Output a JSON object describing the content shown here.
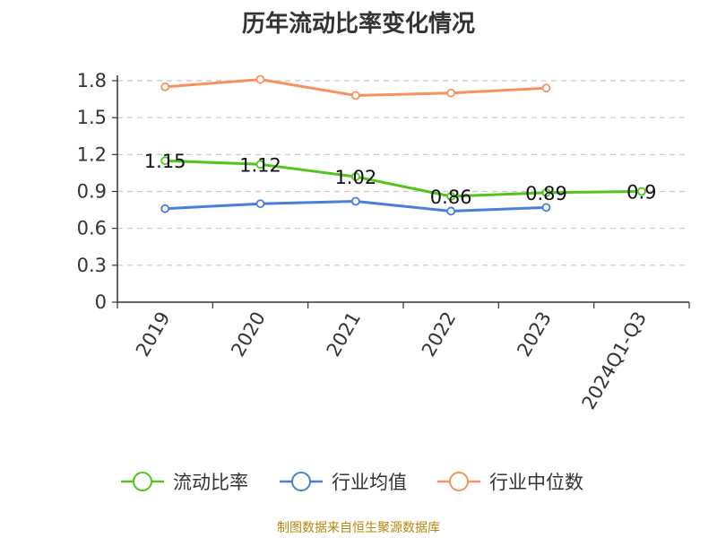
{
  "chart_data": {
    "type": "line",
    "title": "历年流动比率变化情况",
    "categories": [
      "2019",
      "2020",
      "2021",
      "2022",
      "2023",
      "2024Q1-Q3"
    ],
    "y_ticks": [
      "0",
      "0.3",
      "0.6",
      "0.9",
      "1.2",
      "1.5",
      "1.8"
    ],
    "ylim": [
      0,
      1.8
    ],
    "grid": true,
    "legend_position": "bottom",
    "series": [
      {
        "name": "流动比率",
        "color": "#52c41a",
        "values": [
          1.15,
          1.12,
          1.02,
          0.86,
          0.89,
          0.9
        ],
        "labels": [
          "1.15",
          "1.12",
          "1.02",
          "0.86",
          "0.89",
          "0.9"
        ]
      },
      {
        "name": "行业均值",
        "color": "#4a7fd8",
        "values": [
          0.76,
          0.8,
          0.82,
          0.74,
          0.77,
          null
        ]
      },
      {
        "name": "行业中位数",
        "color": "#f5925e",
        "values": [
          1.75,
          1.81,
          1.68,
          1.7,
          1.74,
          null
        ]
      }
    ]
  },
  "footer": "制图数据来自恒生聚源数据库"
}
